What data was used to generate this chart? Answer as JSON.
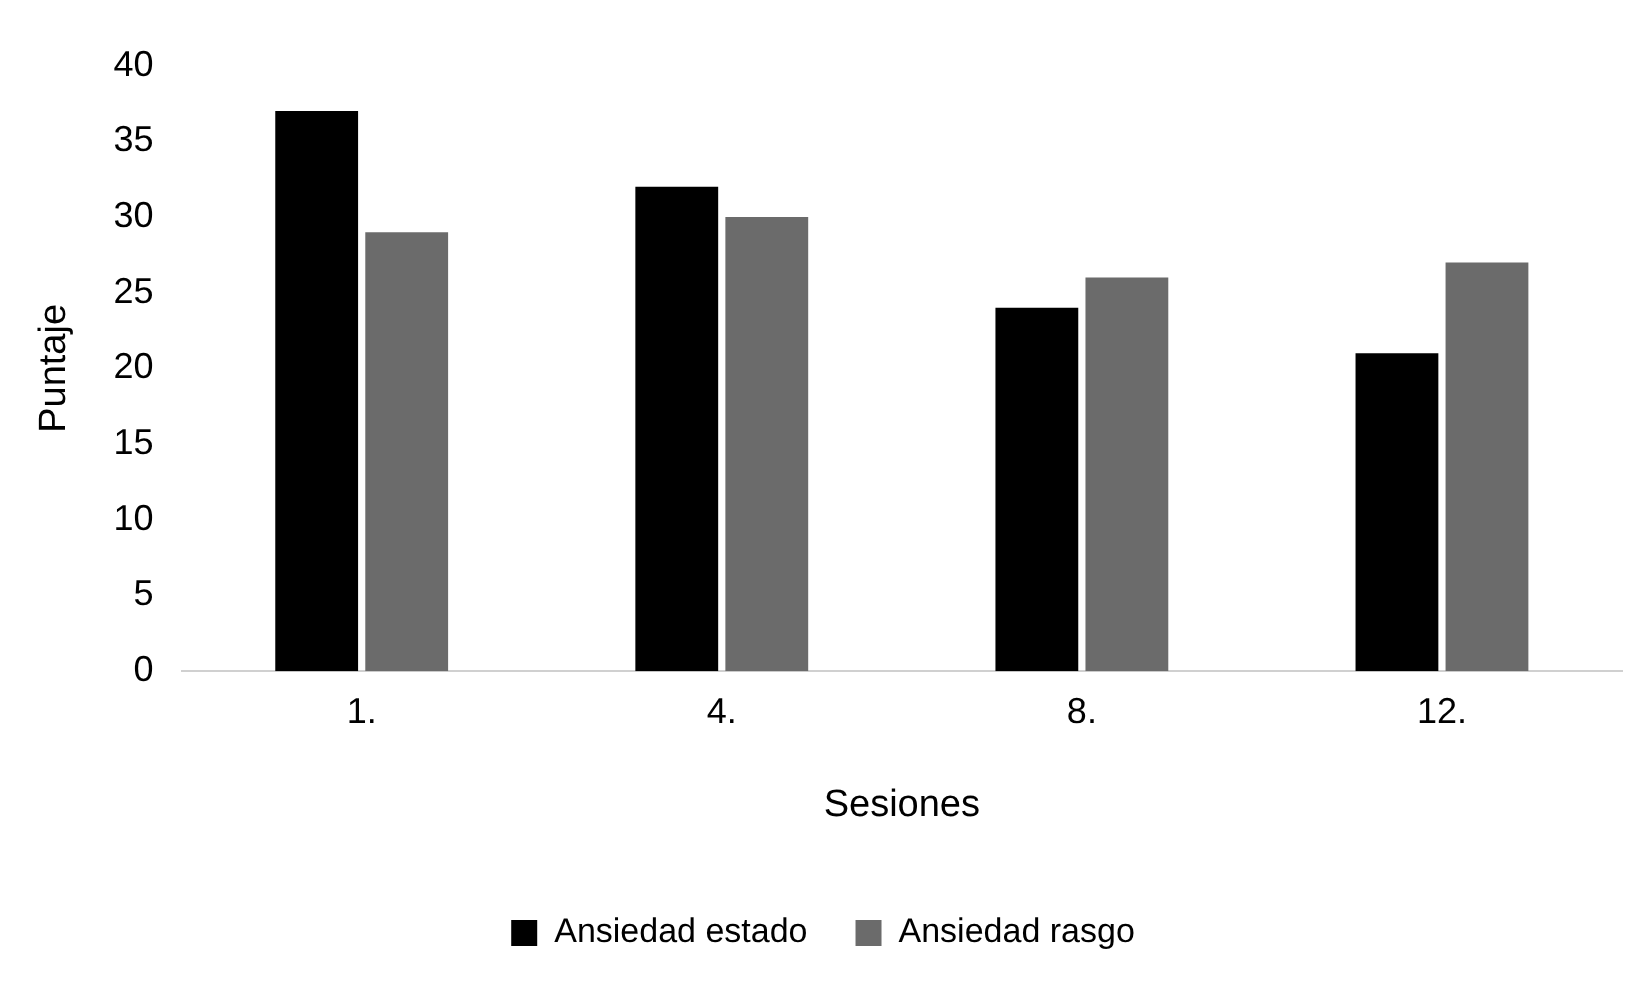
{
  "chart_data": {
    "type": "bar",
    "xlabel": "Sesiones",
    "ylabel": "Puntaje",
    "categories": [
      "1.",
      "4.",
      "8.",
      "12."
    ],
    "series": [
      {
        "name": "Ansiedad estado",
        "color": "#000000",
        "values": [
          37,
          32,
          24,
          21
        ]
      },
      {
        "name": "Ansiedad rasgo",
        "color": "#6b6b6b",
        "values": [
          29,
          30,
          26,
          27
        ]
      }
    ],
    "ylim": [
      0,
      40
    ],
    "yticks": [
      0,
      5,
      10,
      15,
      20,
      25,
      30,
      35,
      40
    ],
    "grid": false,
    "legend": "bottom"
  }
}
